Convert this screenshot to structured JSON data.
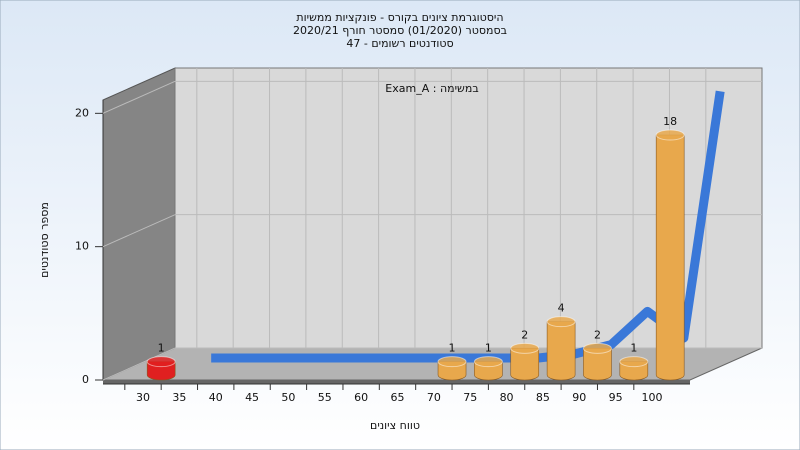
{
  "chart_data": {
    "type": "bar",
    "title_lines": [
      "היסטוגרמת ציונים בקורס - פונקציות ממשיות",
      "בסמסטר  (01/2020)  סמסטר חורף 2020/21",
      "סטודנטים רשומים - 47"
    ],
    "annotation": "Exam_A : במשימה",
    "x_label": "טווח ציונים",
    "y_label": "מספר סטודנטים",
    "x": [
      30,
      35,
      40,
      45,
      50,
      55,
      60,
      65,
      70,
      75,
      80,
      85,
      90,
      95,
      100
    ],
    "values": [
      1,
      0,
      0,
      0,
      0,
      0,
      0,
      0,
      1,
      1,
      2,
      4,
      2,
      1,
      18
    ],
    "colors": [
      "#e02020",
      "#e8a84c",
      "#e8a84c",
      "#e8a84c",
      "#e8a84c",
      "#e8a84c",
      "#e8a84c",
      "#e8a84c",
      "#e8a84c",
      "#e8a84c",
      "#e8a84c",
      "#e8a84c",
      "#e8a84c",
      "#e8a84c",
      "#e8a84c"
    ],
    "curve": {
      "color": "#3a78d8",
      "values": [
        0,
        0,
        0,
        0,
        0,
        0,
        0,
        0,
        0,
        0,
        0.3,
        1,
        3.5,
        1.5,
        20
      ]
    },
    "xlim": [
      30,
      100
    ],
    "xticks": [
      30,
      35,
      40,
      45,
      50,
      55,
      60,
      65,
      70,
      75,
      80,
      85,
      90,
      95,
      100
    ],
    "ylim": [
      0,
      21
    ],
    "yticks": [
      0,
      10,
      20
    ],
    "grid": true
  }
}
